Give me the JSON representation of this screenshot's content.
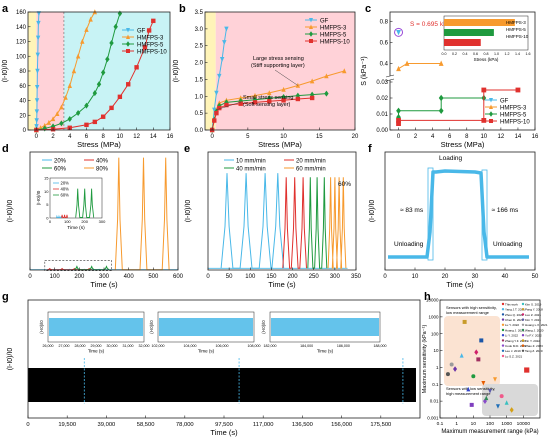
{
  "chart_data": [
    {
      "panel": "a",
      "type": "line",
      "xlabel": "Stress (MPa)",
      "ylabel": "(I-I0)/I0",
      "xlim": [
        -1,
        16
      ],
      "ylim": [
        0,
        160
      ],
      "xticks": [
        "0",
        "2",
        "4",
        "6",
        "8",
        "10",
        "12",
        "14",
        "16"
      ],
      "yticks": [
        "0",
        "20",
        "40",
        "60",
        "80",
        "100",
        "120",
        "140",
        "160"
      ],
      "regions": [
        {
          "x0": -1,
          "x1": 0,
          "color": "#fff4b8"
        },
        {
          "x0": 0,
          "x1": 3.3,
          "color": "#ffd2d8"
        },
        {
          "x0": 3.3,
          "x1": 16,
          "color": "#c8f3f5"
        }
      ],
      "legend_position": "top-right",
      "series": [
        {
          "name": "GF",
          "color": "#49b8e8",
          "marker": "triangle-down",
          "x": [
            0,
            0.02,
            0.04,
            0.06,
            0.08,
            0.1,
            0.13,
            0.17,
            0.21,
            0.25,
            0.3
          ],
          "y": [
            0,
            5,
            13,
            25,
            40,
            58,
            80,
            102,
            125,
            145,
            158
          ]
        },
        {
          "name": "HMFPS-3",
          "color": "#f79a2e",
          "marker": "triangle",
          "x": [
            0,
            0.5,
            1,
            1.5,
            2,
            2.5,
            3,
            3.5,
            4,
            4.5,
            5,
            5.5,
            6,
            6.5,
            7
          ],
          "y": [
            0,
            3,
            6,
            10,
            15,
            22,
            31,
            44,
            60,
            80,
            100,
            120,
            136,
            150,
            160
          ]
        },
        {
          "name": "HMFPS-5",
          "color": "#1f9a3f",
          "marker": "diamond",
          "x": [
            0,
            1,
            2,
            3,
            4,
            5,
            6,
            7,
            7.5,
            8,
            8.5,
            9,
            9.5,
            10
          ],
          "y": [
            0,
            2,
            5,
            9,
            15,
            23,
            33,
            50,
            62,
            78,
            96,
            118,
            140,
            158
          ]
        },
        {
          "name": "HMFPS-10",
          "color": "#e0312e",
          "marker": "square",
          "x": [
            0,
            2,
            4,
            6,
            7,
            8,
            9,
            10,
            11,
            12,
            13,
            13.5,
            14
          ],
          "y": [
            0,
            1,
            3,
            7,
            11,
            18,
            30,
            45,
            62,
            85,
            112,
            135,
            148
          ]
        }
      ]
    },
    {
      "panel": "b",
      "type": "line",
      "xlabel": "Stress (MPa)",
      "ylabel": "(I-I0)/I0",
      "xlim": [
        -1,
        20
      ],
      "ylim": [
        0,
        3.5
      ],
      "xticks": [
        "0",
        "5",
        "10",
        "15",
        "20"
      ],
      "yticks": [
        "0.0",
        "0.5",
        "1.0",
        "1.5",
        "2.0",
        "2.5",
        "3.0",
        "3.5"
      ],
      "regions": [
        {
          "x0": -1,
          "x1": 0.5,
          "color": "#fff4b8"
        },
        {
          "x0": 0.5,
          "x1": 20,
          "color": "#ffd2d8"
        }
      ],
      "annotations": [
        "Large stress sensing\n(Stiff supporting layer)",
        "Small stress sensing\n(Soft sensing layer)"
      ],
      "legend_position": "top-right",
      "series": [
        {
          "name": "GF",
          "color": "#49b8e8",
          "marker": "triangle-down",
          "x": [
            0,
            0.3,
            0.6,
            1,
            1.4,
            1.7,
            2
          ],
          "y": [
            0,
            0.6,
            1.1,
            1.6,
            2.1,
            2.6,
            3
          ]
        },
        {
          "name": "HMFPS-3",
          "color": "#f79a2e",
          "marker": "triangle",
          "x": [
            0,
            0.3,
            0.6,
            1,
            2,
            4,
            6,
            8,
            10,
            12,
            14,
            16,
            18.5
          ],
          "y": [
            0,
            0.3,
            0.6,
            0.8,
            0.88,
            0.95,
            1.02,
            1.1,
            1.2,
            1.32,
            1.45,
            1.6,
            1.75
          ]
        },
        {
          "name": "HMFPS-5",
          "color": "#1f9a3f",
          "marker": "diamond",
          "x": [
            0,
            0.3,
            0.6,
            1,
            2,
            4,
            6,
            8,
            10,
            12,
            14,
            16
          ],
          "y": [
            0,
            0.3,
            0.55,
            0.72,
            0.82,
            0.86,
            0.9,
            0.94,
            0.98,
            1.02,
            1.05,
            1.08
          ]
        },
        {
          "name": "HMFPS-10",
          "color": "#e0312e",
          "marker": "square",
          "x": [
            0,
            0.3,
            0.6,
            1,
            2,
            4,
            6,
            8,
            10,
            12,
            14
          ],
          "y": [
            0,
            0.28,
            0.5,
            0.65,
            0.74,
            0.78,
            0.82,
            0.85,
            0.88,
            0.92,
            0.95
          ]
        }
      ]
    },
    {
      "panel": "c",
      "type": "line",
      "xlabel": "Stress (MPa)",
      "ylabel": "S (kPa⁻¹)",
      "xlim": [
        -1,
        16
      ],
      "xticks": [
        "0",
        "2",
        "4",
        "6",
        "8",
        "10",
        "12",
        "14",
        "16"
      ],
      "yticks_upper": [
        "0.4",
        "0.6",
        "0.8"
      ],
      "yticks_lower": [
        "0.00",
        "0.01",
        "0.02",
        "0.03"
      ],
      "annotation": "S = 0.695 kPa⁻¹",
      "legend_position": "top-right",
      "series": [
        {
          "name": "GF",
          "color": "#49b8e8",
          "marker": "triangle-down",
          "x": [
            0
          ],
          "y": [
            0.695
          ]
        },
        {
          "name": "HMFPS-3",
          "color": "#f79a2e",
          "marker": "triangle",
          "x": [
            0,
            1,
            5
          ],
          "y": [
            0.35,
            0.4,
            0.4
          ]
        },
        {
          "name": "HMFPS-5",
          "color": "#1f9a3f",
          "marker": "diamond",
          "x": [
            0,
            0,
            5,
            5,
            10
          ],
          "y": [
            0.008,
            0.012,
            0.012,
            0.02,
            0.02
          ]
        },
        {
          "name": "HMFPS-10",
          "color": "#e0312e",
          "marker": "square",
          "x": [
            0,
            0,
            10,
            10,
            14
          ],
          "y": [
            0.004,
            0.006,
            0.006,
            0.025,
            0.025
          ]
        }
      ],
      "inset": {
        "type": "bar",
        "xlabel": "Stress (kPa)",
        "xticks": [
          "0.0",
          "0.2",
          "0.4",
          "0.6",
          "0.8",
          "1.0",
          "1.2",
          "1.4",
          "1.6"
        ],
        "bars": [
          {
            "name": "HMFPS-3",
            "color": "#f79a2e",
            "value": 1.35
          },
          {
            "name": "HMFPS-5",
            "color": "#1f9a3f",
            "value": 0.95
          },
          {
            "name": "HMFPS-10",
            "color": "#e0312e",
            "value": 0.7
          }
        ]
      }
    },
    {
      "panel": "d",
      "type": "line",
      "xlabel": "Time (s)",
      "ylabel": "(I-I0)/I0",
      "xlim": [
        0,
        600
      ],
      "ylim": [
        0,
        170
      ],
      "xticks": [
        "0",
        "100",
        "200",
        "300",
        "400",
        "500",
        "600"
      ],
      "legend_position": "top-left",
      "series": [
        {
          "name": "20%",
          "color": "#49b8e8",
          "peaks_x": [
            100,
            160,
            220,
            280
          ],
          "peak_y": 1
        },
        {
          "name": "40%",
          "color": "#e0312e",
          "peaks_x": [
            80,
            130,
            180,
            240
          ],
          "peak_y": 2
        },
        {
          "name": "60%",
          "color": "#1f9a3f",
          "peaks_x": [
            190,
            250,
            310
          ],
          "peak_y": 5
        },
        {
          "name": "80%",
          "color": "#f79a2e",
          "peaks_x": [
            360,
            460,
            550
          ],
          "peak_y": 162
        }
      ],
      "inset": {
        "xlabel": "Time (s)",
        "ylabel": "(I-I0)/I0",
        "xlim": [
          0,
          300
        ],
        "ylim": [
          0,
          15
        ],
        "xticks": [
          "0",
          "100",
          "200",
          "300"
        ],
        "yticks": [
          "0",
          "5",
          "10",
          "15"
        ],
        "series": [
          {
            "name": "20%",
            "color": "#49b8e8",
            "peaks_x": [
              40,
              52,
              64
            ],
            "peak_y": 0.6
          },
          {
            "name": "40%",
            "color": "#e0312e",
            "peaks_x": [
              70,
              84,
              98
            ],
            "peak_y": 1.2
          },
          {
            "name": "60%",
            "color": "#1f9a3f",
            "peaks_x": [
              160,
              200,
              240
            ],
            "peak_y": 11
          }
        ]
      }
    },
    {
      "panel": "e",
      "type": "line",
      "xlabel": "Time (s)",
      "ylabel": "(I-I0)/I0",
      "xlim": [
        0,
        350
      ],
      "xticks": [
        "0",
        "50",
        "100",
        "150",
        "200",
        "250",
        "300",
        "350"
      ],
      "annotation": "60%",
      "legend_position": "top",
      "series": [
        {
          "name": "10 mm/min",
          "color": "#49b8e8",
          "peaks_x": [
            45,
            90,
            135,
            165
          ],
          "peak_y": 11.5
        },
        {
          "name": "20 mm/min",
          "color": "#e0312e",
          "peaks_x": [
            185,
            205,
            225
          ],
          "peak_y": 11
        },
        {
          "name": "40 mm/min",
          "color": "#1f9a3f",
          "peaks_x": [
            242,
            258,
            275
          ],
          "peak_y": 11
        },
        {
          "name": "60 mm/min",
          "color": "#f79a2e",
          "peaks_x": [
            290,
            300,
            310,
            320
          ],
          "peak_y": 11
        }
      ]
    },
    {
      "panel": "f",
      "type": "line",
      "xlabel": "Time (s)",
      "ylabel": "(I-I0)/I0",
      "xlim": [
        0,
        50
      ],
      "xticks": [
        "0",
        "10",
        "20",
        "30",
        "40",
        "50"
      ],
      "annotations": [
        "Loading",
        "Unloading",
        "Unloading",
        "≈ 83 ms",
        "≈ 166 ms"
      ],
      "series": [
        {
          "name": "",
          "color": "#49b8e8",
          "x": [
            1,
            5,
            10,
            14,
            15,
            16,
            17,
            20,
            25,
            30,
            32,
            33,
            34,
            35,
            40,
            45,
            48
          ],
          "y": [
            0.5,
            0.5,
            0.5,
            0.5,
            3,
            9,
            9,
            9.1,
            9.05,
            9,
            8.9,
            3,
            0.5,
            0.5,
            0.5,
            0.5,
            0.5
          ]
        }
      ]
    },
    {
      "panel": "g",
      "type": "line",
      "xlabel": "Time (s)",
      "ylabel": "(I-I0)/I0",
      "xlim": [
        0,
        195000
      ],
      "xticks": [
        "0",
        "19,500",
        "39,000",
        "58,500",
        "78,000",
        "97,500",
        "117,000",
        "136,500",
        "156,000",
        "175,500"
      ],
      "insets": [
        {
          "xlabel": "Time (s)",
          "ylabel": "(I-I0)/I0",
          "xticks": [
            "26,000",
            "27,000",
            "28,000",
            "29,000",
            "30,000",
            "31,000",
            "32,000"
          ]
        },
        {
          "xlabel": "Time (s)",
          "ylabel": "(I-I0)/I0",
          "xticks": [
            "102,000",
            "104,000",
            "106,000",
            "108,000"
          ]
        },
        {
          "xlabel": "Time (s)",
          "ylabel": "(I-I0)/I0",
          "xticks": [
            "182,000",
            "184,000",
            "186,000",
            "188,000"
          ]
        }
      ],
      "series": [
        {
          "name": "",
          "color": "#000000"
        }
      ]
    },
    {
      "panel": "h",
      "type": "scatter",
      "xlabel": "Maximum measurement range (kPa)",
      "ylabel": "Maximum sensitivity (kPa⁻¹)",
      "xscale": "log",
      "yscale": "log",
      "xlim": [
        0.1,
        100000
      ],
      "ylim": [
        0.001,
        10000
      ],
      "xticks": [
        "0.1",
        "1",
        "10",
        "100",
        "1000",
        "10000"
      ],
      "yticks": [
        "0.001",
        "0.01",
        "0.1",
        "1",
        "10",
        "100",
        "1000",
        "10000"
      ],
      "annotations": [
        "Sensors with high sensitivity,\nlow measurement range",
        "Sensors with low sensitivity,\nhigh measurement range"
      ],
      "series": [
        {
          "name": "This work",
          "color": "#e0312e",
          "x": [
            16000
          ],
          "y": [
            0.7
          ]
        },
        {
          "name": "Yang J.T. 2021",
          "color": "#49b8e8",
          "x": [
            2
          ],
          "y": [
            5
          ]
        },
        {
          "name": "Zhou Q. 2020",
          "color": "#1a56a8",
          "x": [
            30
          ],
          "y": [
            40
          ]
        },
        {
          "name": "Chen D. 2020",
          "color": "#6c35a8",
          "x": [
            0.8
          ],
          "y": [
            0.8
          ]
        },
        {
          "name": "Lu Y. 2022",
          "color": "#f79a2e",
          "x": [
            200
          ],
          "y": [
            0.2
          ]
        },
        {
          "name": "Huang J. 2021",
          "color": "#1f9a3f",
          "x": [
            10
          ],
          "y": [
            0.3
          ]
        },
        {
          "name": "Li Y. 2022",
          "color": "#3344cc",
          "x": [
            5
          ],
          "y": [
            0.05
          ]
        },
        {
          "name": "Zhang Y.F. 2021",
          "color": "#a03060",
          "x": [
            20
          ],
          "y": [
            3
          ]
        },
        {
          "name": "Cook M.D. 2021",
          "color": "#8a4bcb",
          "x": [
            50
          ],
          "y": [
            0.01
          ]
        },
        {
          "name": "Lee J. 2019",
          "color": "#1f6fb8",
          "x": [
            300
          ],
          "y": [
            0.005
          ]
        },
        {
          "name": "Lu S.Z. 2021",
          "color": "#f05a8a",
          "x": [
            500
          ],
          "y": [
            0.02
          ]
        },
        {
          "name": "Kim S. 2019",
          "color": "#38c0c0",
          "x": [
            1000
          ],
          "y": [
            0.008
          ]
        },
        {
          "name": "Pang Y. 2018",
          "color": "#c89b2a",
          "x": [
            3
          ],
          "y": [
            500
          ]
        },
        {
          "name": "Luo Z. 2021",
          "color": "#d0206a",
          "x": [
            15
          ],
          "y": [
            8
          ]
        },
        {
          "name": "Kim Y. 2021",
          "color": "#5a5aaa",
          "x": [
            100
          ],
          "y": [
            0.04
          ]
        },
        {
          "name": "Huang L.X. 2021",
          "color": "#9b9b9b",
          "x": [
            0.5
          ],
          "y": [
            1.5
          ]
        },
        {
          "name": "Wang J. 2020",
          "color": "#2e8b57",
          "x": [
            60
          ],
          "y": [
            0.015
          ]
        },
        {
          "name": "Yu F.Y. 2022",
          "color": "#7f3fbf",
          "x": [
            8
          ],
          "y": [
            0.006
          ]
        },
        {
          "name": "Yin Y. 2022",
          "color": "#d4a017",
          "x": [
            2000
          ],
          "y": [
            0.003
          ]
        },
        {
          "name": "Zhao Z. 2023",
          "color": "#e65c00",
          "x": [
            40
          ],
          "y": [
            0.12
          ]
        },
        {
          "name": "Tang Z. 2020",
          "color": "#555555",
          "x": [
            0.3
          ],
          "y": [
            0.4
          ]
        }
      ]
    }
  ]
}
